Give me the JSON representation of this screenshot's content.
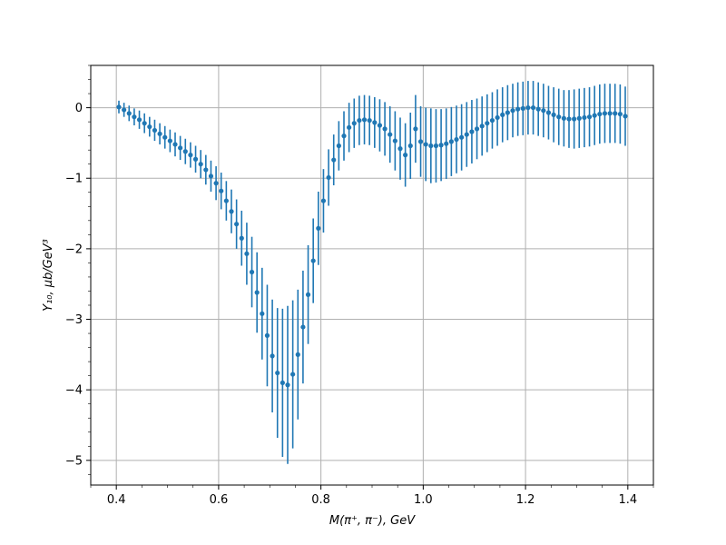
{
  "chart_data": {
    "type": "scatter",
    "title": "",
    "xlabel": "M(π⁺, π⁻), GeV",
    "ylabel": "Y₁₀, μb/GeV³",
    "xlim": [
      0.35,
      1.45
    ],
    "ylim": [
      -5.35,
      0.6
    ],
    "x_ticks": [
      0.4,
      0.6,
      0.8,
      1.0,
      1.2,
      1.4
    ],
    "x_tick_labels": [
      "0.4",
      "0.6",
      "0.8",
      "1.0",
      "1.2",
      "1.4"
    ],
    "y_ticks": [
      0,
      -1,
      -2,
      -3,
      -4,
      -5
    ],
    "y_tick_labels": [
      "0",
      "−1",
      "−2",
      "−3",
      "−4",
      "−5"
    ],
    "grid": true,
    "color": "#1f77b4",
    "series": [
      {
        "x": [
          0.405,
          0.415,
          0.425,
          0.435,
          0.445,
          0.455,
          0.465,
          0.475,
          0.485,
          0.495,
          0.505,
          0.515,
          0.525,
          0.535,
          0.545,
          0.555,
          0.565,
          0.575,
          0.585,
          0.595,
          0.605,
          0.615,
          0.625,
          0.635,
          0.645,
          0.655,
          0.665,
          0.675,
          0.685,
          0.695,
          0.705,
          0.715,
          0.725,
          0.735,
          0.745,
          0.755,
          0.765,
          0.775,
          0.785,
          0.795,
          0.805,
          0.815,
          0.825,
          0.835,
          0.845,
          0.855,
          0.865,
          0.875,
          0.885,
          0.895,
          0.905,
          0.915,
          0.925,
          0.935,
          0.945,
          0.955,
          0.965,
          0.975,
          0.985,
          0.995,
          1.005,
          1.015,
          1.025,
          1.035,
          1.045,
          1.055,
          1.065,
          1.075,
          1.085,
          1.095,
          1.105,
          1.115,
          1.125,
          1.135,
          1.145,
          1.155,
          1.165,
          1.175,
          1.185,
          1.195,
          1.205,
          1.215,
          1.225,
          1.235,
          1.245,
          1.255,
          1.265,
          1.275,
          1.285,
          1.295,
          1.305,
          1.315,
          1.325,
          1.335,
          1.345,
          1.355,
          1.365,
          1.375,
          1.385,
          1.395
        ],
        "y": [
          0.01,
          -0.03,
          -0.08,
          -0.13,
          -0.17,
          -0.22,
          -0.27,
          -0.32,
          -0.37,
          -0.42,
          -0.47,
          -0.52,
          -0.57,
          -0.62,
          -0.67,
          -0.73,
          -0.8,
          -0.88,
          -0.97,
          -1.07,
          -1.18,
          -1.32,
          -1.47,
          -1.65,
          -1.85,
          -2.07,
          -2.33,
          -2.62,
          -2.92,
          -3.23,
          -3.52,
          -3.76,
          -3.9,
          -3.93,
          -3.78,
          -3.5,
          -3.11,
          -2.65,
          -2.17,
          -1.71,
          -1.32,
          -0.99,
          -0.74,
          -0.54,
          -0.4,
          -0.28,
          -0.22,
          -0.18,
          -0.17,
          -0.18,
          -0.21,
          -0.25,
          -0.3,
          -0.38,
          -0.47,
          -0.58,
          -0.67,
          -0.54,
          -0.3,
          -0.48,
          -0.52,
          -0.54,
          -0.54,
          -0.53,
          -0.51,
          -0.48,
          -0.45,
          -0.42,
          -0.38,
          -0.34,
          -0.3,
          -0.26,
          -0.22,
          -0.18,
          -0.14,
          -0.1,
          -0.07,
          -0.04,
          -0.02,
          -0.01,
          0.0,
          0.0,
          -0.02,
          -0.04,
          -0.07,
          -0.1,
          -0.13,
          -0.15,
          -0.16,
          -0.16,
          -0.15,
          -0.14,
          -0.13,
          -0.11,
          -0.09,
          -0.08,
          -0.08,
          -0.08,
          -0.09,
          -0.12
        ],
        "yerr": [
          0.09,
          0.1,
          0.11,
          0.12,
          0.13,
          0.14,
          0.14,
          0.15,
          0.15,
          0.16,
          0.16,
          0.17,
          0.17,
          0.18,
          0.18,
          0.19,
          0.2,
          0.21,
          0.22,
          0.24,
          0.26,
          0.28,
          0.31,
          0.35,
          0.39,
          0.44,
          0.5,
          0.57,
          0.65,
          0.72,
          0.8,
          0.92,
          1.05,
          1.12,
          1.05,
          0.92,
          0.8,
          0.7,
          0.6,
          0.52,
          0.45,
          0.4,
          0.36,
          0.35,
          0.35,
          0.35,
          0.35,
          0.35,
          0.35,
          0.35,
          0.36,
          0.37,
          0.38,
          0.4,
          0.42,
          0.44,
          0.45,
          0.47,
          0.48,
          0.5,
          0.52,
          0.53,
          0.52,
          0.51,
          0.5,
          0.49,
          0.48,
          0.47,
          0.46,
          0.45,
          0.43,
          0.42,
          0.41,
          0.4,
          0.4,
          0.39,
          0.39,
          0.38,
          0.38,
          0.38,
          0.38,
          0.38,
          0.38,
          0.38,
          0.38,
          0.39,
          0.4,
          0.4,
          0.41,
          0.42,
          0.42,
          0.42,
          0.42,
          0.42,
          0.42,
          0.42,
          0.42,
          0.42,
          0.42,
          0.42
        ]
      }
    ]
  }
}
